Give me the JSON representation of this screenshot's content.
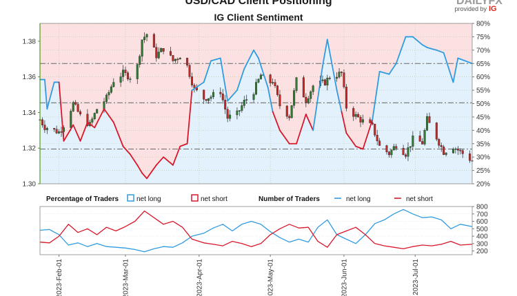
{
  "header": {
    "title": "USD/CAD Client Positioning",
    "subtitle": "IG Client Sentiment",
    "brand_provided": "provided by",
    "brand_logo": "IG"
  },
  "colors": {
    "net_long": "#2f9be0",
    "net_short": "#d8172a",
    "long_fill": "#e2f1fb",
    "short_fill": "#fbe1e1",
    "candle_up": "#2e7d32",
    "candle_down": "#c62828",
    "left_axis": "#4f9a1f"
  },
  "legend": {
    "pct_title": "Percentage of Traders",
    "pct_long": "net long",
    "pct_short": "net short",
    "num_title": "Number of Traders",
    "num_long": "net long",
    "num_short": "net short"
  },
  "chart_data": [
    {
      "type": "candlestick+area",
      "title": "IG Client Sentiment",
      "left_axis": {
        "label": "",
        "ylim": [
          1.3,
          1.39
        ],
        "ticks": [
          1.3,
          1.32,
          1.34,
          1.36,
          1.38
        ]
      },
      "right_axis": {
        "label": "",
        "ylim": [
          20,
          80
        ],
        "ticks": [
          "20%",
          "25%",
          "30%",
          "35%",
          "40%",
          "45%",
          "50%",
          "55%",
          "60%",
          "65%",
          "70%",
          "75%",
          "80%"
        ]
      },
      "reference_lines": [
        1.3675,
        1.3455,
        1.3195
      ],
      "x_range": [
        "2023-01-24",
        "2023-07-25"
      ],
      "close_keypoints": [
        [
          "2023-01-24",
          1.336
        ],
        [
          "2023-01-26",
          1.332
        ],
        [
          "2023-02-01",
          1.329
        ],
        [
          "2023-02-03",
          1.333
        ],
        [
          "2023-02-07",
          1.345
        ],
        [
          "2023-02-10",
          1.338
        ],
        [
          "2023-02-14",
          1.333
        ],
        [
          "2023-02-17",
          1.342
        ],
        [
          "2023-02-21",
          1.348
        ],
        [
          "2023-02-24",
          1.358
        ],
        [
          "2023-02-28",
          1.362
        ],
        [
          "2023-03-03",
          1.36
        ],
        [
          "2023-03-06",
          1.366
        ],
        [
          "2023-03-08",
          1.381
        ],
        [
          "2023-03-10",
          1.384
        ],
        [
          "2023-03-14",
          1.372
        ],
        [
          "2023-03-17",
          1.376
        ],
        [
          "2023-03-21",
          1.369
        ],
        [
          "2023-03-24",
          1.372
        ],
        [
          "2023-03-27",
          1.366
        ],
        [
          "2023-03-30",
          1.353
        ],
        [
          "2023-04-03",
          1.348
        ],
        [
          "2023-04-06",
          1.349
        ],
        [
          "2023-04-10",
          1.352
        ],
        [
          "2023-04-13",
          1.337
        ],
        [
          "2023-04-17",
          1.339
        ],
        [
          "2023-04-20",
          1.346
        ],
        [
          "2023-04-24",
          1.352
        ],
        [
          "2023-04-27",
          1.361
        ],
        [
          "2023-04-30",
          1.356
        ],
        [
          "2023-05-02",
          1.358
        ],
        [
          "2023-05-05",
          1.344
        ],
        [
          "2023-05-09",
          1.338
        ],
        [
          "2023-05-12",
          1.358
        ],
        [
          "2023-05-16",
          1.347
        ],
        [
          "2023-05-19",
          1.355
        ],
        [
          "2023-05-24",
          1.357
        ],
        [
          "2023-05-26",
          1.36
        ],
        [
          "2023-05-31",
          1.362
        ],
        [
          "2023-06-02",
          1.343
        ],
        [
          "2023-06-06",
          1.338
        ],
        [
          "2023-06-09",
          1.335
        ],
        [
          "2023-06-13",
          1.332
        ],
        [
          "2023-06-16",
          1.321
        ],
        [
          "2023-06-20",
          1.317
        ],
        [
          "2023-06-23",
          1.322
        ],
        [
          "2023-06-27",
          1.317
        ],
        [
          "2023-06-30",
          1.325
        ],
        [
          "2023-07-04",
          1.323
        ],
        [
          "2023-07-06",
          1.336
        ],
        [
          "2023-07-10",
          1.326
        ],
        [
          "2023-07-13",
          1.318
        ],
        [
          "2023-07-17",
          1.321
        ],
        [
          "2023-07-20",
          1.318
        ],
        [
          "2023-07-25",
          1.313
        ]
      ],
      "long_pct_keypoints": [
        [
          "2023-01-24",
          59
        ],
        [
          "2023-01-26",
          59
        ],
        [
          "2023-01-27",
          48
        ],
        [
          "2023-01-30",
          58
        ],
        [
          "2023-02-01",
          58
        ],
        [
          "2023-02-03",
          36
        ],
        [
          "2023-02-07",
          42
        ],
        [
          "2023-02-10",
          36
        ],
        [
          "2023-02-13",
          43
        ],
        [
          "2023-02-16",
          41
        ],
        [
          "2023-02-20",
          48
        ],
        [
          "2023-02-24",
          43
        ],
        [
          "2023-02-28",
          34
        ],
        [
          "2023-03-03",
          31
        ],
        [
          "2023-03-06",
          27
        ],
        [
          "2023-03-08",
          24
        ],
        [
          "2023-03-10",
          22
        ],
        [
          "2023-03-14",
          27
        ],
        [
          "2023-03-17",
          30
        ],
        [
          "2023-03-21",
          27
        ],
        [
          "2023-03-24",
          34
        ],
        [
          "2023-03-27",
          35
        ],
        [
          "2023-03-29",
          55
        ],
        [
          "2023-04-03",
          58
        ],
        [
          "2023-04-06",
          66
        ],
        [
          "2023-04-10",
          67
        ],
        [
          "2023-04-13",
          51
        ],
        [
          "2023-04-17",
          55
        ],
        [
          "2023-04-20",
          63
        ],
        [
          "2023-04-24",
          70
        ],
        [
          "2023-04-26",
          67
        ],
        [
          "2023-04-30",
          56
        ],
        [
          "2023-05-02",
          47
        ],
        [
          "2023-05-05",
          40
        ],
        [
          "2023-05-09",
          35
        ],
        [
          "2023-05-12",
          35
        ],
        [
          "2023-05-16",
          46
        ],
        [
          "2023-05-19",
          40
        ],
        [
          "2023-05-23",
          64
        ],
        [
          "2023-05-25",
          74
        ],
        [
          "2023-05-29",
          55
        ],
        [
          "2023-05-31",
          47
        ],
        [
          "2023-06-02",
          39
        ],
        [
          "2023-06-06",
          34
        ],
        [
          "2023-06-09",
          33
        ],
        [
          "2023-06-13",
          44
        ],
        [
          "2023-06-16",
          62
        ],
        [
          "2023-06-20",
          61
        ],
        [
          "2023-06-23",
          65
        ],
        [
          "2023-06-27",
          75
        ],
        [
          "2023-06-30",
          75
        ],
        [
          "2023-07-04",
          72
        ],
        [
          "2023-07-06",
          71
        ],
        [
          "2023-07-10",
          70
        ],
        [
          "2023-07-13",
          69
        ],
        [
          "2023-07-17",
          58
        ],
        [
          "2023-07-19",
          67
        ],
        [
          "2023-07-25",
          65
        ]
      ]
    },
    {
      "type": "line",
      "title": "Percentage of Traders / Number of Traders",
      "right_axis": {
        "ylim": [
          150,
          800
        ],
        "ticks": [
          200,
          300,
          400,
          500,
          600,
          700,
          800
        ]
      },
      "x_ticks": [
        "2023-Feb-01",
        "2023-Mar-01",
        "2023-Apr-01",
        "2023-May-01",
        "2023-Jun-01",
        "2023-Jul-01"
      ],
      "series": [
        {
          "name": "net long",
          "keypoints": [
            [
              "2023-01-24",
              480
            ],
            [
              "2023-01-28",
              490
            ],
            [
              "2023-02-01",
              420
            ],
            [
              "2023-02-05",
              280
            ],
            [
              "2023-02-09",
              310
            ],
            [
              "2023-02-13",
              260
            ],
            [
              "2023-02-17",
              300
            ],
            [
              "2023-02-21",
              260
            ],
            [
              "2023-02-25",
              250
            ],
            [
              "2023-03-01",
              240
            ],
            [
              "2023-03-05",
              220
            ],
            [
              "2023-03-09",
              190
            ],
            [
              "2023-03-13",
              230
            ],
            [
              "2023-03-17",
              260
            ],
            [
              "2023-03-21",
              250
            ],
            [
              "2023-03-25",
              310
            ],
            [
              "2023-03-29",
              400
            ],
            [
              "2023-04-03",
              440
            ],
            [
              "2023-04-07",
              510
            ],
            [
              "2023-04-11",
              560
            ],
            [
              "2023-04-15",
              470
            ],
            [
              "2023-04-19",
              560
            ],
            [
              "2023-04-23",
              600
            ],
            [
              "2023-04-27",
              560
            ],
            [
              "2023-05-01",
              460
            ],
            [
              "2023-05-05",
              380
            ],
            [
              "2023-05-09",
              320
            ],
            [
              "2023-05-13",
              360
            ],
            [
              "2023-05-17",
              320
            ],
            [
              "2023-05-21",
              520
            ],
            [
              "2023-05-25",
              620
            ],
            [
              "2023-05-29",
              420
            ],
            [
              "2023-06-02",
              360
            ],
            [
              "2023-06-06",
              300
            ],
            [
              "2023-06-10",
              420
            ],
            [
              "2023-06-14",
              570
            ],
            [
              "2023-06-18",
              620
            ],
            [
              "2023-06-22",
              700
            ],
            [
              "2023-06-26",
              760
            ],
            [
              "2023-06-30",
              700
            ],
            [
              "2023-07-04",
              650
            ],
            [
              "2023-07-08",
              660
            ],
            [
              "2023-07-12",
              620
            ],
            [
              "2023-07-16",
              500
            ],
            [
              "2023-07-20",
              560
            ],
            [
              "2023-07-25",
              530
            ]
          ]
        },
        {
          "name": "net short",
          "keypoints": [
            [
              "2023-01-24",
              320
            ],
            [
              "2023-01-28",
              310
            ],
            [
              "2023-02-01",
              400
            ],
            [
              "2023-02-05",
              560
            ],
            [
              "2023-02-09",
              450
            ],
            [
              "2023-02-13",
              500
            ],
            [
              "2023-02-17",
              420
            ],
            [
              "2023-02-21",
              520
            ],
            [
              "2023-02-25",
              470
            ],
            [
              "2023-03-01",
              530
            ],
            [
              "2023-03-05",
              600
            ],
            [
              "2023-03-09",
              740
            ],
            [
              "2023-03-13",
              650
            ],
            [
              "2023-03-17",
              560
            ],
            [
              "2023-03-21",
              600
            ],
            [
              "2023-03-25",
              520
            ],
            [
              "2023-03-29",
              360
            ],
            [
              "2023-04-03",
              310
            ],
            [
              "2023-04-07",
              290
            ],
            [
              "2023-04-11",
              270
            ],
            [
              "2023-04-15",
              330
            ],
            [
              "2023-04-19",
              300
            ],
            [
              "2023-04-23",
              260
            ],
            [
              "2023-04-27",
              300
            ],
            [
              "2023-05-01",
              420
            ],
            [
              "2023-05-05",
              500
            ],
            [
              "2023-05-09",
              560
            ],
            [
              "2023-05-13",
              510
            ],
            [
              "2023-05-17",
              520
            ],
            [
              "2023-05-21",
              330
            ],
            [
              "2023-05-25",
              250
            ],
            [
              "2023-05-29",
              420
            ],
            [
              "2023-06-02",
              470
            ],
            [
              "2023-06-06",
              520
            ],
            [
              "2023-06-10",
              420
            ],
            [
              "2023-06-14",
              300
            ],
            [
              "2023-06-18",
              270
            ],
            [
              "2023-06-22",
              250
            ],
            [
              "2023-06-26",
              230
            ],
            [
              "2023-06-30",
              260
            ],
            [
              "2023-07-04",
              280
            ],
            [
              "2023-07-08",
              270
            ],
            [
              "2023-07-12",
              290
            ],
            [
              "2023-07-16",
              330
            ],
            [
              "2023-07-20",
              280
            ],
            [
              "2023-07-25",
              290
            ]
          ]
        }
      ]
    }
  ]
}
